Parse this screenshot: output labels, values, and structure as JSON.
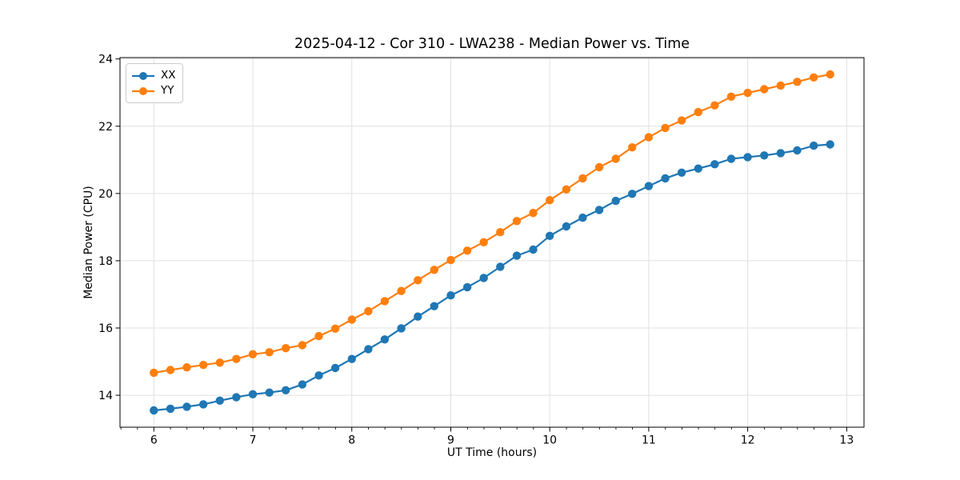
{
  "figure": {
    "background": "#ffffff"
  },
  "colors": {
    "grid": "#e0e0e0",
    "spine": "#000000",
    "text": "#000000",
    "legend_border": "#cccccc",
    "series_xx": "#1f77b4",
    "series_yy": "#ff7f0e"
  },
  "chart_data": {
    "type": "line",
    "title": "2025-04-12 - Cor 310 - LWA238 - Median Power vs. Time",
    "xlabel": "UT Time (hours)",
    "ylabel": "Median Power (CPU)",
    "xlim": [
      5.658,
      13.175
    ],
    "ylim": [
      13.05,
      24.04
    ],
    "xticks": [
      6,
      7,
      8,
      9,
      10,
      11,
      12,
      13
    ],
    "yticks": [
      14,
      16,
      18,
      20,
      22,
      24
    ],
    "x_minor_tick_step": 0.1667,
    "grid": true,
    "legend_position": "upper-left",
    "marker": "circle",
    "x": [
      6.0,
      6.167,
      6.333,
      6.5,
      6.667,
      6.833,
      7.0,
      7.167,
      7.333,
      7.5,
      7.667,
      7.833,
      8.0,
      8.167,
      8.333,
      8.5,
      8.667,
      8.833,
      9.0,
      9.167,
      9.333,
      9.5,
      9.667,
      9.833,
      10.0,
      10.167,
      10.333,
      10.5,
      10.667,
      10.833,
      11.0,
      11.167,
      11.333,
      11.5,
      11.667,
      11.833,
      12.0,
      12.167,
      12.333,
      12.5,
      12.667,
      12.833
    ],
    "series": [
      {
        "name": "XX",
        "color": "#1f77b4",
        "values": [
          13.55,
          13.6,
          13.66,
          13.73,
          13.84,
          13.94,
          14.03,
          14.08,
          14.15,
          14.32,
          14.59,
          14.81,
          15.08,
          15.37,
          15.66,
          15.99,
          16.34,
          16.65,
          16.97,
          17.21,
          17.49,
          17.82,
          18.15,
          18.33,
          18.74,
          19.02,
          19.28,
          19.51,
          19.78,
          19.99,
          20.22,
          20.45,
          20.62,
          20.74,
          20.87,
          21.03,
          21.08,
          21.13,
          21.2,
          21.28,
          21.42,
          21.46
        ]
      },
      {
        "name": "YY",
        "color": "#ff7f0e",
        "values": [
          14.67,
          14.75,
          14.83,
          14.9,
          14.97,
          15.08,
          15.22,
          15.28,
          15.4,
          15.49,
          15.76,
          15.98,
          16.25,
          16.5,
          16.8,
          17.1,
          17.42,
          17.73,
          18.02,
          18.3,
          18.55,
          18.85,
          19.18,
          19.42,
          19.8,
          20.12,
          20.45,
          20.78,
          21.03,
          21.37,
          21.67,
          21.95,
          22.17,
          22.42,
          22.62,
          22.88,
          22.99,
          23.1,
          23.21,
          23.32,
          23.45,
          23.54
        ]
      }
    ]
  }
}
